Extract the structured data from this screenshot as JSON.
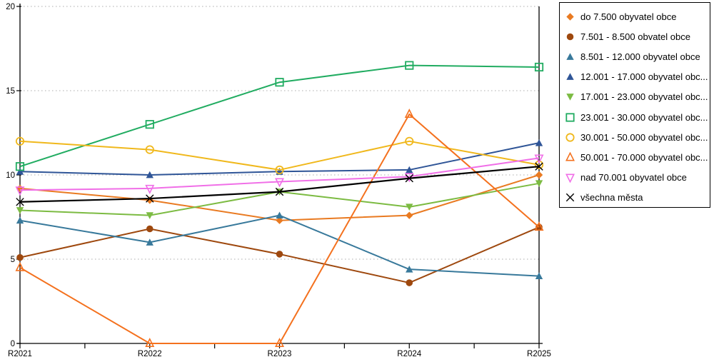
{
  "chart_data": {
    "type": "line",
    "title": "",
    "xlabel": "",
    "ylabel": "",
    "ylim": [
      0,
      20
    ],
    "y_ticks": [
      "0",
      "5",
      "10",
      "15",
      "20"
    ],
    "grid": "dashed-horizontal",
    "legend_position": "right",
    "categories": [
      "R2021",
      "R2022",
      "R2023",
      "R2024",
      "R2025"
    ],
    "series": [
      {
        "name": "do 7.500 obyvatel obce",
        "marker": "diamond",
        "color": "#E97A21",
        "values": [
          9.2,
          8.5,
          7.3,
          7.6,
          10.0
        ]
      },
      {
        "name": "7.501 - 8.500 obvatel obce",
        "marker": "circle",
        "color": "#9E480E",
        "values": [
          5.1,
          6.8,
          5.3,
          3.6,
          6.9
        ]
      },
      {
        "name": "8.501 - 12.000 obyvatel obce",
        "marker": "triangle",
        "color": "#38799B",
        "values": [
          7.3,
          6.0,
          7.6,
          4.4,
          4.0
        ]
      },
      {
        "name": "12.001 - 17.000 obyvatel obc...",
        "marker": "triangle",
        "color": "#2F5597",
        "values": [
          10.2,
          10.0,
          10.2,
          10.3,
          11.9
        ]
      },
      {
        "name": "17.001 - 23.000 obyvatel obc...",
        "marker": "triangle-down",
        "color": "#7CBB42",
        "values": [
          7.9,
          7.6,
          9.0,
          8.1,
          9.5
        ]
      },
      {
        "name": "23.001 - 30.000 obyvatel obc...",
        "marker": "square-open",
        "color": "#21AC61",
        "values": [
          10.5,
          13.0,
          15.5,
          16.5,
          16.4
        ]
      },
      {
        "name": "30.001 - 50.000 obyvatel obc...",
        "marker": "circle-open",
        "color": "#F0B81C",
        "values": [
          12.0,
          11.5,
          10.3,
          12.0,
          10.6
        ]
      },
      {
        "name": "50.001 - 70.000 obyvatel obc...",
        "marker": "triangle-open",
        "color": "#F4711E",
        "values": [
          4.5,
          0,
          0,
          13.6,
          6.9
        ]
      },
      {
        "name": "nad 70.001 obyvatel obce",
        "marker": "triangle-down-open",
        "color": "#F06EE7",
        "values": [
          9.1,
          9.2,
          9.6,
          9.9,
          11.0
        ]
      },
      {
        "name": "všechna města",
        "marker": "x-cross",
        "color": "#000000",
        "values": [
          8.4,
          8.6,
          9.0,
          9.8,
          10.5
        ]
      }
    ]
  },
  "colors": {
    "gridline": "#ADADAD",
    "axis": "#000000",
    "background": "#FFFFFF"
  }
}
